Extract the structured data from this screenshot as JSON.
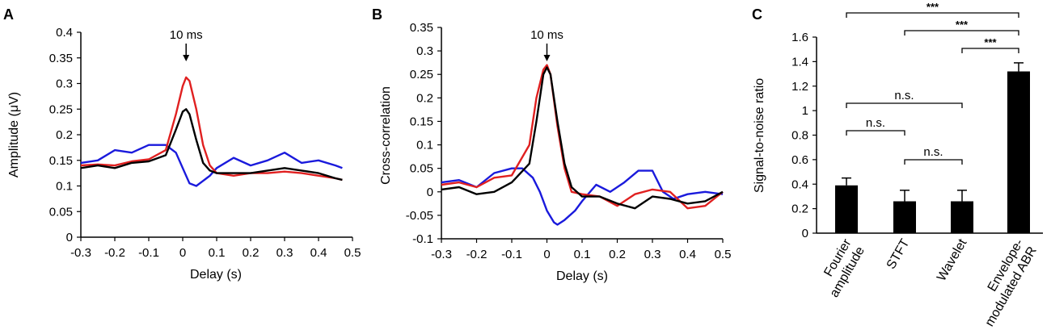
{
  "chart_data": [
    {
      "panel": "A",
      "type": "line",
      "xlabel": "Delay (s)",
      "ylabel": "Amplitude (μV)",
      "xlim": [
        -0.3,
        0.5
      ],
      "ylim": [
        0,
        0.4
      ],
      "xticks": [
        -0.3,
        -0.2,
        -0.1,
        0,
        0.1,
        0.2,
        0.3,
        0.4,
        0.5
      ],
      "yticks": [
        0,
        0.05,
        0.1,
        0.15,
        0.2,
        0.25,
        0.3,
        0.35,
        0.4
      ],
      "xtick_labels": [
        "-0.3",
        "-0.2",
        "-0.1",
        "0",
        "0.1",
        "0.2",
        "0.3",
        "0.4",
        "0.5"
      ],
      "ytick_labels": [
        "0",
        "0.05",
        "0.1",
        "0.15",
        "0.2",
        "0.25",
        "0.3",
        "0.35",
        "0.4"
      ],
      "annotation": {
        "label": "10 ms",
        "x": 0.01
      },
      "series": [
        {
          "name": "blue",
          "color": "#1a1adc",
          "x": [
            -0.3,
            -0.25,
            -0.2,
            -0.15,
            -0.1,
            -0.05,
            -0.02,
            0,
            0.02,
            0.04,
            0.06,
            0.08,
            0.1,
            0.15,
            0.2,
            0.25,
            0.3,
            0.35,
            0.4,
            0.45,
            0.47
          ],
          "y": [
            0.145,
            0.15,
            0.17,
            0.165,
            0.18,
            0.18,
            0.165,
            0.135,
            0.105,
            0.1,
            0.11,
            0.12,
            0.135,
            0.155,
            0.14,
            0.15,
            0.165,
            0.145,
            0.15,
            0.14,
            0.135
          ]
        },
        {
          "name": "red",
          "color": "#e02020",
          "x": [
            -0.3,
            -0.25,
            -0.2,
            -0.15,
            -0.1,
            -0.05,
            -0.02,
            0,
            0.01,
            0.02,
            0.04,
            0.06,
            0.08,
            0.1,
            0.15,
            0.2,
            0.25,
            0.3,
            0.35,
            0.4,
            0.45,
            0.47
          ],
          "y": [
            0.14,
            0.142,
            0.14,
            0.148,
            0.152,
            0.17,
            0.24,
            0.295,
            0.312,
            0.305,
            0.25,
            0.18,
            0.14,
            0.125,
            0.12,
            0.125,
            0.125,
            0.128,
            0.125,
            0.12,
            0.115,
            0.112
          ]
        },
        {
          "name": "black",
          "color": "#000000",
          "x": [
            -0.3,
            -0.25,
            -0.2,
            -0.15,
            -0.1,
            -0.05,
            -0.02,
            0,
            0.01,
            0.02,
            0.04,
            0.06,
            0.08,
            0.1,
            0.15,
            0.2,
            0.25,
            0.3,
            0.35,
            0.4,
            0.45,
            0.47
          ],
          "y": [
            0.135,
            0.14,
            0.135,
            0.145,
            0.148,
            0.16,
            0.21,
            0.245,
            0.25,
            0.24,
            0.19,
            0.145,
            0.13,
            0.125,
            0.125,
            0.125,
            0.13,
            0.135,
            0.13,
            0.125,
            0.115,
            0.112
          ]
        }
      ]
    },
    {
      "panel": "B",
      "type": "line",
      "xlabel": "Delay (s)",
      "ylabel": "Cross-correlation",
      "xlim": [
        -0.3,
        0.5
      ],
      "ylim": [
        -0.1,
        0.35
      ],
      "xticks": [
        -0.3,
        -0.2,
        -0.1,
        0,
        0.1,
        0.2,
        0.3,
        0.4,
        0.5
      ],
      "yticks": [
        -0.1,
        -0.05,
        0,
        0.05,
        0.1,
        0.15,
        0.2,
        0.25,
        0.3,
        0.35
      ],
      "xtick_labels": [
        "-0.3",
        "-0.2",
        "-0.1",
        "0",
        "0.1",
        "0.2",
        "0.3",
        "0.4",
        "0.5"
      ],
      "ytick_labels": [
        "-0.1",
        "-0.05",
        "0",
        "0.05",
        "0.1",
        "0.15",
        "0.2",
        "0.25",
        "0.3",
        "0.35"
      ],
      "annotation": {
        "label": "10 ms",
        "x": 0.0
      },
      "series": [
        {
          "name": "blue",
          "color": "#1a1adc",
          "x": [
            -0.3,
            -0.25,
            -0.2,
            -0.15,
            -0.1,
            -0.07,
            -0.04,
            -0.02,
            0,
            0.02,
            0.03,
            0.05,
            0.08,
            0.1,
            0.14,
            0.18,
            0.22,
            0.26,
            0.3,
            0.33,
            0.36,
            0.4,
            0.45,
            0.5
          ],
          "y": [
            0.02,
            0.025,
            0.01,
            0.04,
            0.05,
            0.05,
            0.03,
            0.0,
            -0.04,
            -0.065,
            -0.07,
            -0.06,
            -0.04,
            -0.02,
            0.015,
            0.0,
            0.02,
            0.045,
            0.045,
            0.0,
            -0.015,
            -0.005,
            0.0,
            -0.005
          ]
        },
        {
          "name": "red",
          "color": "#e02020",
          "x": [
            -0.3,
            -0.25,
            -0.2,
            -0.15,
            -0.1,
            -0.05,
            -0.03,
            -0.01,
            0,
            0.01,
            0.03,
            0.05,
            0.07,
            0.1,
            0.15,
            0.2,
            0.25,
            0.3,
            0.35,
            0.4,
            0.45,
            0.5
          ],
          "y": [
            0.015,
            0.02,
            0.01,
            0.03,
            0.035,
            0.1,
            0.2,
            0.26,
            0.27,
            0.25,
            0.14,
            0.05,
            0.0,
            -0.005,
            -0.01,
            -0.03,
            -0.005,
            0.005,
            0.0,
            -0.035,
            -0.03,
            0.0
          ]
        },
        {
          "name": "black",
          "color": "#000000",
          "x": [
            -0.3,
            -0.25,
            -0.2,
            -0.15,
            -0.1,
            -0.05,
            -0.03,
            -0.01,
            0,
            0.01,
            0.03,
            0.05,
            0.07,
            0.1,
            0.15,
            0.2,
            0.25,
            0.3,
            0.35,
            0.4,
            0.45,
            0.5
          ],
          "y": [
            0.005,
            0.01,
            -0.005,
            0.0,
            0.02,
            0.06,
            0.15,
            0.25,
            0.265,
            0.25,
            0.15,
            0.06,
            0.01,
            -0.01,
            -0.01,
            -0.025,
            -0.035,
            -0.01,
            -0.015,
            -0.025,
            -0.02,
            0.0
          ]
        }
      ]
    },
    {
      "panel": "C",
      "type": "bar",
      "ylabel": "Signal-to-noise ratio",
      "ylim": [
        0,
        1.6
      ],
      "yticks": [
        0,
        0.2,
        0.4,
        0.6,
        0.8,
        1,
        1.2,
        1.4,
        1.6
      ],
      "ytick_labels": [
        "0",
        "0.2",
        "0.4",
        "0.6",
        "0.8",
        "1",
        "1.2",
        "1.4",
        "1.6"
      ],
      "categories": [
        {
          "line1": "Fourier",
          "line2": "amplitude"
        },
        {
          "line1": "STFT",
          "line2": ""
        },
        {
          "line1": "Wavelet",
          "line2": ""
        },
        {
          "line1": "Envelope-",
          "line2": "modulated ABR"
        }
      ],
      "values": [
        0.39,
        0.26,
        0.26,
        1.32
      ],
      "errors": [
        0.06,
        0.09,
        0.09,
        0.07
      ],
      "significance": [
        {
          "from": 0,
          "to": 3,
          "label": "***"
        },
        {
          "from": 1,
          "to": 3,
          "label": "***"
        },
        {
          "from": 2,
          "to": 3,
          "label": "***"
        },
        {
          "from": 0,
          "to": 2,
          "label": "n.s."
        },
        {
          "from": 0,
          "to": 1,
          "label": "n.s."
        },
        {
          "from": 1,
          "to": 2,
          "label": "n.s."
        }
      ]
    }
  ]
}
